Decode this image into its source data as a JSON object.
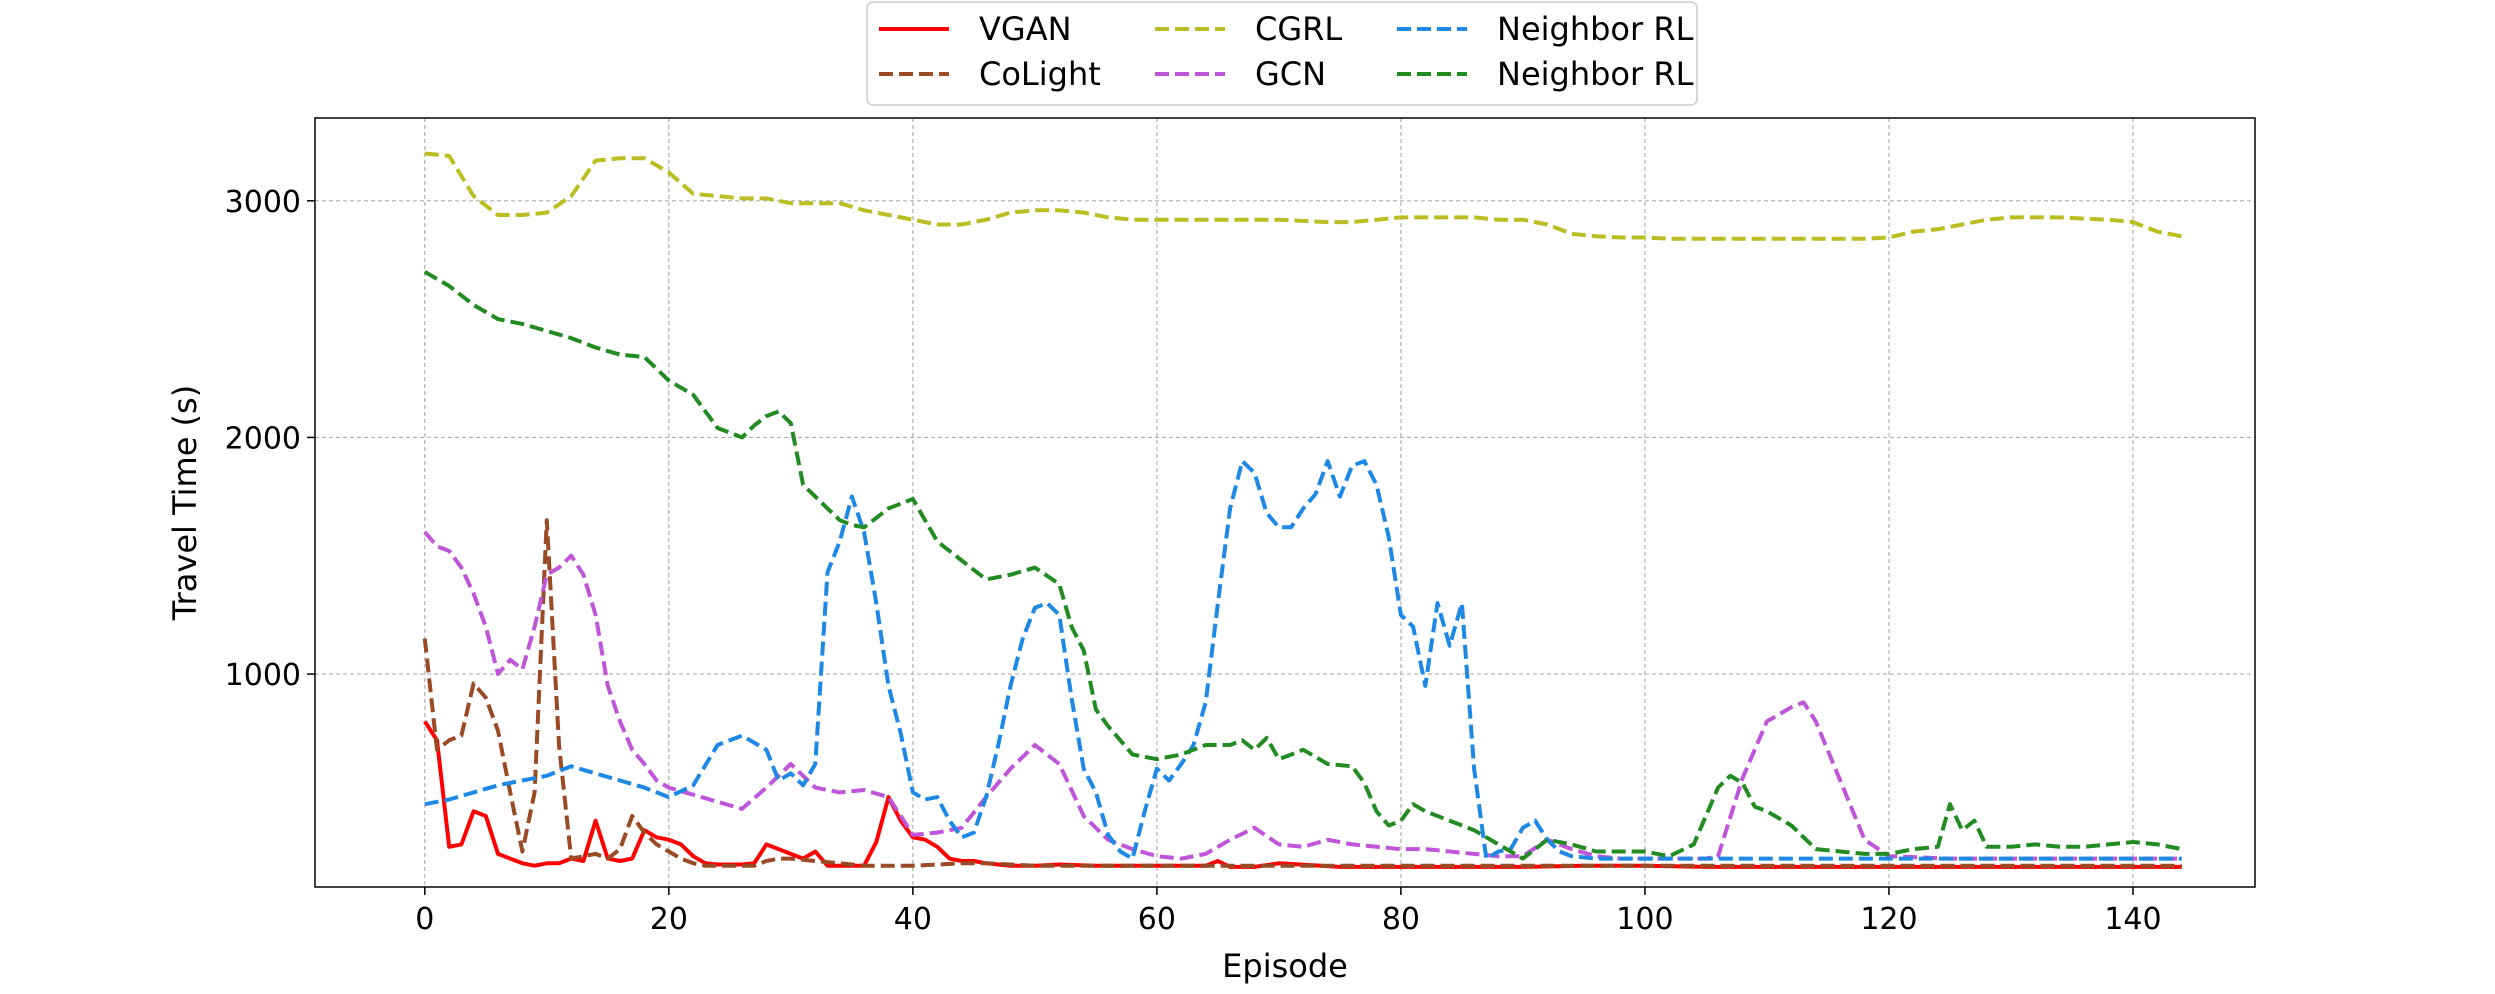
{
  "chart_data": {
    "type": "line",
    "xlabel": "Episode",
    "ylabel": "Travel Time (s)",
    "xlim": [
      -9,
      150
    ],
    "ylim": [
      100,
      3350
    ],
    "xticks": [
      0,
      20,
      40,
      60,
      80,
      100,
      120,
      140
    ],
    "yticks": [
      1000,
      2000,
      3000
    ],
    "grid": true,
    "legend_position": "top-center",
    "legend_columns": 3,
    "series": [
      {
        "name": "VGAN",
        "color": "#ff0000",
        "dash": "solid",
        "x": [
          0,
          1,
          2,
          3,
          4,
          5,
          6,
          7,
          8,
          9,
          10,
          11,
          12,
          13,
          14,
          15,
          16,
          17,
          18,
          19,
          20,
          21,
          22,
          23,
          24,
          25,
          26,
          27,
          28,
          29,
          30,
          31,
          32,
          33,
          34,
          35,
          36,
          37,
          38,
          39,
          40,
          41,
          42,
          43,
          44,
          45,
          46,
          47,
          48,
          49,
          50,
          52,
          55,
          58,
          60,
          62,
          64,
          65,
          66,
          68,
          70,
          75,
          80,
          85,
          90,
          95,
          100,
          105,
          110,
          115,
          120,
          125,
          130,
          135,
          140,
          144
        ],
        "y": [
          800,
          720,
          270,
          280,
          420,
          400,
          240,
          220,
          200,
          190,
          200,
          200,
          220,
          210,
          380,
          220,
          210,
          220,
          340,
          310,
          300,
          280,
          230,
          200,
          195,
          195,
          195,
          200,
          280,
          260,
          240,
          220,
          250,
          190,
          190,
          190,
          190,
          290,
          480,
          380,
          310,
          300,
          270,
          220,
          210,
          210,
          200,
          195,
          190,
          190,
          190,
          195,
          190,
          190,
          190,
          190,
          190,
          210,
          185,
          185,
          200,
          185,
          185,
          185,
          185,
          190,
          190,
          185,
          185,
          185,
          185,
          185,
          185,
          185,
          185,
          185
        ]
      },
      {
        "name": "CoLight",
        "color": "#9a4a24",
        "dash": "dashed",
        "x": [
          0,
          1,
          2,
          3,
          4,
          5,
          6,
          7,
          8,
          9,
          10,
          11,
          12,
          13,
          14,
          15,
          16,
          17,
          18,
          19,
          20,
          21,
          22,
          23,
          24,
          25,
          26,
          27,
          28,
          29,
          30,
          32,
          34,
          36,
          38,
          40,
          42,
          44,
          46,
          48,
          50,
          55,
          60,
          65,
          70,
          80,
          90,
          100,
          110,
          120,
          130,
          140,
          144
        ],
        "y": [
          1150,
          680,
          720,
          740,
          960,
          900,
          760,
          500,
          250,
          500,
          1650,
          700,
          220,
          230,
          240,
          220,
          260,
          400,
          330,
          280,
          250,
          220,
          200,
          190,
          190,
          190,
          190,
          190,
          210,
          220,
          220,
          210,
          200,
          190,
          190,
          190,
          195,
          200,
          200,
          195,
          190,
          190,
          190,
          190,
          190,
          190,
          190,
          190,
          190,
          190,
          190,
          190,
          190
        ]
      },
      {
        "name": "CGRL",
        "color": "#bcbd22",
        "dash": "dashed",
        "x": [
          0,
          2,
          4,
          6,
          8,
          10,
          12,
          14,
          16,
          18,
          20,
          22,
          24,
          26,
          28,
          30,
          32,
          34,
          36,
          38,
          40,
          42,
          44,
          46,
          48,
          50,
          52,
          54,
          56,
          58,
          60,
          62,
          64,
          66,
          68,
          70,
          72,
          74,
          76,
          78,
          80,
          82,
          84,
          86,
          88,
          90,
          92,
          94,
          96,
          98,
          100,
          102,
          104,
          106,
          108,
          110,
          112,
          114,
          116,
          118,
          120,
          122,
          124,
          126,
          128,
          130,
          132,
          134,
          136,
          138,
          140,
          142,
          144
        ],
        "y": [
          3200,
          3190,
          3020,
          2940,
          2940,
          2950,
          3020,
          3170,
          3180,
          3180,
          3120,
          3030,
          3020,
          3010,
          3010,
          2990,
          2990,
          2990,
          2960,
          2940,
          2920,
          2900,
          2900,
          2920,
          2950,
          2960,
          2960,
          2950,
          2930,
          2920,
          2920,
          2920,
          2920,
          2920,
          2920,
          2920,
          2915,
          2910,
          2910,
          2920,
          2930,
          2930,
          2930,
          2930,
          2920,
          2920,
          2900,
          2860,
          2850,
          2845,
          2845,
          2840,
          2840,
          2840,
          2840,
          2840,
          2840,
          2840,
          2840,
          2840,
          2845,
          2870,
          2880,
          2900,
          2920,
          2930,
          2930,
          2930,
          2925,
          2920,
          2910,
          2870,
          2850
        ]
      },
      {
        "name": "GCN",
        "color": "#bf55d8",
        "dash": "dashed",
        "x": [
          0,
          1,
          2,
          3,
          4,
          5,
          6,
          7,
          8,
          9,
          10,
          11,
          12,
          13,
          14,
          15,
          16,
          17,
          18,
          19,
          20,
          22,
          24,
          26,
          28,
          30,
          32,
          34,
          36,
          38,
          40,
          42,
          44,
          46,
          48,
          50,
          52,
          54,
          56,
          58,
          60,
          62,
          64,
          66,
          68,
          70,
          72,
          74,
          76,
          78,
          80,
          82,
          84,
          86,
          88,
          90,
          92,
          94,
          96,
          98,
          100,
          102,
          104,
          105,
          106,
          108,
          110,
          112,
          113,
          114,
          116,
          118,
          120,
          125,
          130,
          135,
          140,
          144
        ],
        "y": [
          1600,
          1540,
          1520,
          1450,
          1340,
          1200,
          1000,
          1060,
          1020,
          1200,
          1420,
          1450,
          1500,
          1420,
          1250,
          950,
          800,
          680,
          620,
          550,
          520,
          490,
          460,
          430,
          520,
          620,
          520,
          500,
          510,
          480,
          320,
          330,
          350,
          480,
          600,
          700,
          620,
          400,
          300,
          260,
          230,
          220,
          240,
          300,
          350,
          280,
          270,
          300,
          280,
          270,
          260,
          260,
          250,
          240,
          230,
          230,
          300,
          260,
          230,
          220,
          220,
          220,
          220,
          220,
          230,
          560,
          800,
          860,
          880,
          800,
          550,
          300,
          230,
          220,
          220,
          220,
          220,
          220
        ]
      },
      {
        "name": "Neighbor RL",
        "color": "#1e88e5",
        "dash": "dashed",
        "x": [
          0,
          2,
          4,
          6,
          8,
          10,
          12,
          14,
          16,
          18,
          20,
          22,
          24,
          26,
          28,
          29,
          30,
          31,
          32,
          33,
          34,
          35,
          36,
          37,
          38,
          39,
          40,
          41,
          42,
          43,
          44,
          45,
          46,
          47,
          48,
          49,
          50,
          51,
          52,
          53,
          54,
          55,
          56,
          57,
          58,
          59,
          60,
          61,
          62,
          63,
          64,
          65,
          66,
          67,
          68,
          69,
          70,
          71,
          72,
          73,
          74,
          75,
          76,
          77,
          78,
          79,
          80,
          81,
          82,
          83,
          84,
          85,
          86,
          87,
          88,
          89,
          90,
          91,
          92,
          93,
          94,
          96,
          100,
          110,
          120,
          130,
          140,
          144
        ],
        "y": [
          450,
          470,
          500,
          530,
          550,
          570,
          610,
          580,
          550,
          520,
          480,
          530,
          700,
          740,
          680,
          550,
          580,
          530,
          620,
          1430,
          1560,
          1750,
          1600,
          1300,
          950,
          750,
          500,
          470,
          480,
          380,
          310,
          330,
          480,
          700,
          950,
          1150,
          1280,
          1300,
          1250,
          900,
          600,
          500,
          320,
          250,
          220,
          420,
          600,
          550,
          620,
          700,
          880,
          1300,
          1700,
          1900,
          1850,
          1680,
          1620,
          1620,
          1700,
          1760,
          1900,
          1750,
          1880,
          1900,
          1800,
          1580,
          1250,
          1200,
          950,
          1300,
          1120,
          1300,
          600,
          220,
          250,
          260,
          350,
          380,
          300,
          250,
          230,
          220,
          220,
          220,
          220,
          220,
          220,
          220
        ]
      },
      {
        "name": "Neighbor RL",
        "color": "#228b22",
        "dash": "dashed",
        "x": [
          0,
          2,
          4,
          6,
          8,
          10,
          12,
          14,
          16,
          18,
          20,
          22,
          24,
          25,
          26,
          27,
          28,
          29,
          30,
          31,
          32,
          33,
          34,
          35,
          36,
          37,
          38,
          40,
          42,
          44,
          46,
          48,
          50,
          52,
          53,
          54,
          55,
          56,
          58,
          60,
          62,
          64,
          66,
          67,
          68,
          69,
          70,
          72,
          74,
          76,
          77,
          78,
          79,
          80,
          81,
          82,
          84,
          86,
          88,
          90,
          92,
          94,
          96,
          98,
          100,
          102,
          104,
          105,
          106,
          107,
          108,
          109,
          110,
          112,
          114,
          116,
          118,
          120,
          122,
          124,
          125,
          126,
          127,
          128,
          130,
          132,
          134,
          136,
          138,
          140,
          142,
          144
        ],
        "y": [
          2700,
          2640,
          2560,
          2500,
          2480,
          2450,
          2420,
          2380,
          2350,
          2340,
          2240,
          2180,
          2040,
          2020,
          2000,
          2050,
          2090,
          2110,
          2060,
          1800,
          1750,
          1700,
          1650,
          1630,
          1620,
          1660,
          1700,
          1740,
          1560,
          1480,
          1400,
          1420,
          1450,
          1380,
          1200,
          1100,
          850,
          780,
          660,
          640,
          660,
          700,
          700,
          720,
          680,
          730,
          640,
          680,
          620,
          610,
          540,
          420,
          360,
          380,
          450,
          420,
          380,
          340,
          280,
          220,
          300,
          280,
          250,
          250,
          250,
          230,
          280,
          400,
          520,
          570,
          540,
          440,
          420,
          360,
          260,
          250,
          240,
          240,
          260,
          270,
          450,
          340,
          380,
          270,
          270,
          280,
          270,
          270,
          280,
          290,
          280,
          260
        ]
      }
    ]
  }
}
